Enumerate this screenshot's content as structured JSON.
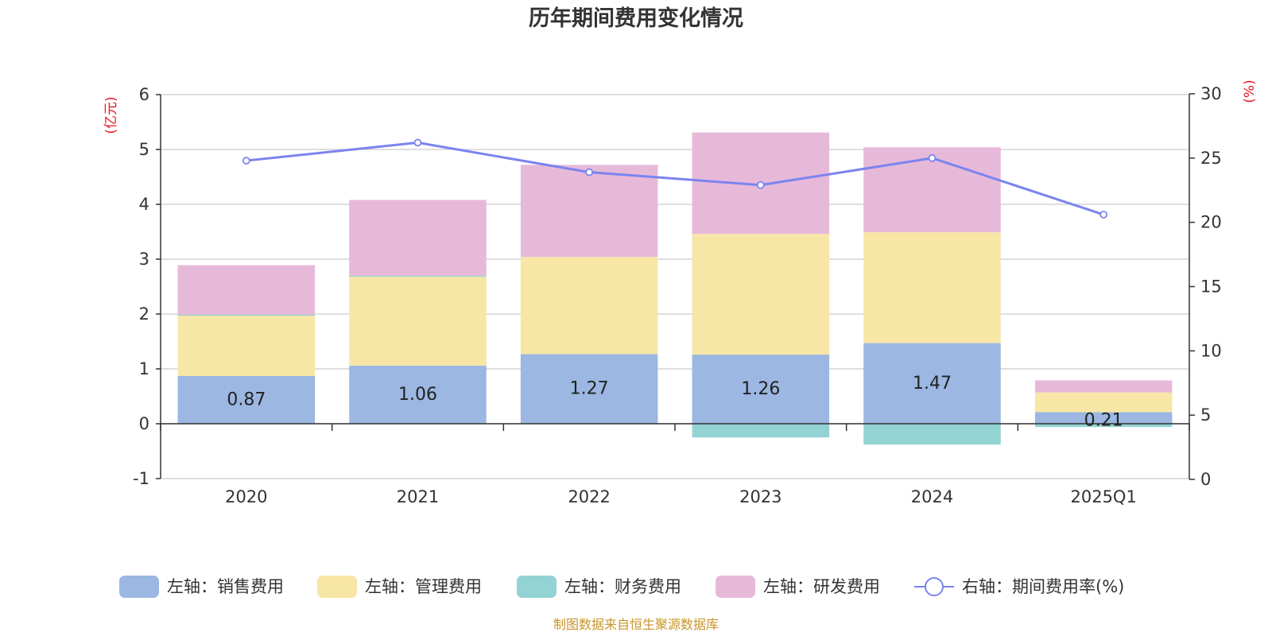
{
  "chart_data": {
    "type": "bar",
    "title": "历年期间费用变化情况",
    "left_unit": "(亿元)",
    "right_unit": "(%)",
    "categories": [
      "2020",
      "2021",
      "2022",
      "2023",
      "2024",
      "2025Q1"
    ],
    "left_axis": {
      "ylim": [
        -1,
        6
      ],
      "ticks": [
        "-1",
        "0",
        "1",
        "2",
        "3",
        "4",
        "5",
        "6"
      ]
    },
    "right_axis": {
      "ylim": [
        0,
        30
      ],
      "ticks": [
        "0",
        "5",
        "10",
        "15",
        "20",
        "25",
        "30"
      ]
    },
    "grid": true,
    "legend_position": "bottom",
    "series": [
      {
        "name": "左轴：销售费用",
        "type": "bar",
        "stack": "left",
        "color": "#9bb7e2",
        "values": [
          0.87,
          1.06,
          1.27,
          1.26,
          1.47,
          0.21
        ],
        "labels": [
          "0.87",
          "1.06",
          "1.27",
          "1.26",
          "1.47",
          "0.21"
        ]
      },
      {
        "name": "左轴：管理费用",
        "type": "bar",
        "stack": "left",
        "color": "#f8e6a7",
        "values": [
          1.1,
          1.62,
          1.77,
          2.2,
          2.02,
          0.36
        ]
      },
      {
        "name": "左轴：财务费用",
        "type": "bar",
        "stack": "left",
        "color": "#93d3d3",
        "values": [
          0.02,
          0.02,
          0.0,
          -0.25,
          -0.38,
          -0.06
        ]
      },
      {
        "name": "左轴：研发费用",
        "type": "bar",
        "stack": "left",
        "color": "#e7b9d9",
        "values": [
          0.9,
          1.38,
          1.68,
          1.85,
          1.55,
          0.22
        ]
      },
      {
        "name": "右轴：期间费用率(%)",
        "type": "line",
        "axis": "right",
        "color": "#7b84ee",
        "values": [
          24.8,
          26.2,
          23.9,
          22.9,
          25.0,
          20.6
        ]
      }
    ]
  },
  "source_text": "制图数据来自恒生聚源数据库"
}
